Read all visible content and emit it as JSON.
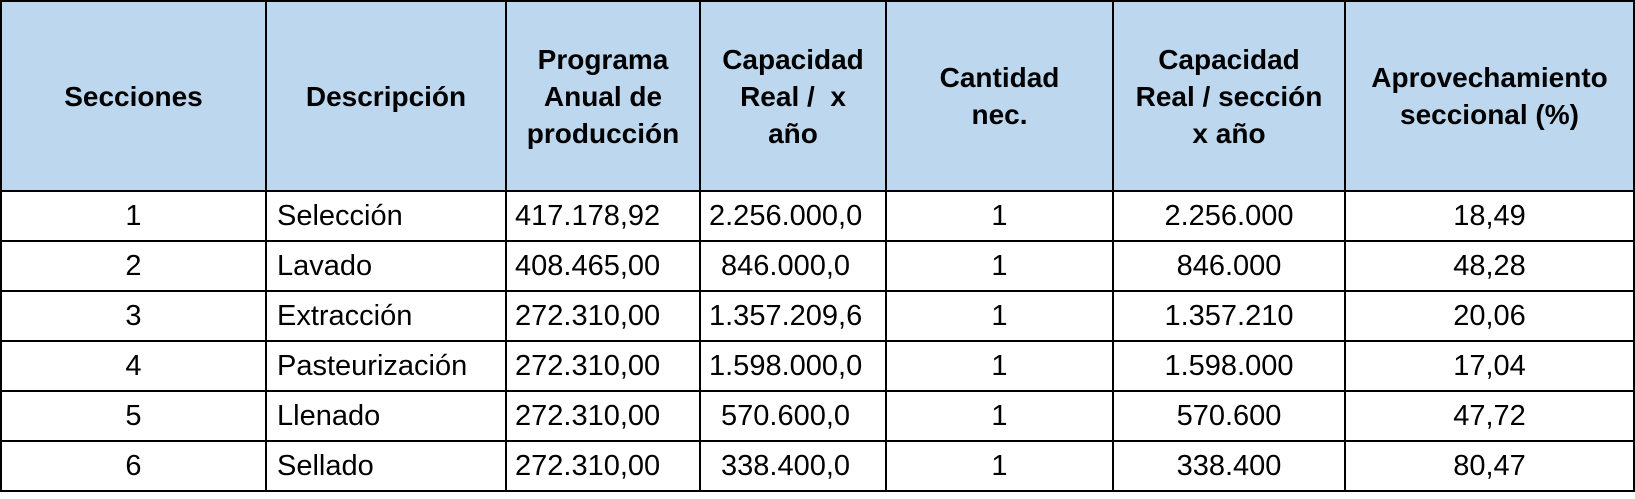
{
  "table": {
    "headers": [
      [
        "Secciones"
      ],
      [
        "Descripción"
      ],
      [
        "Programa",
        "Anual de",
        "producción"
      ],
      [
        "Capacidad",
        "Real /  x",
        "año"
      ],
      [
        "Cantidad",
        "nec."
      ],
      [
        "Capacidad",
        "Real / sección",
        "x año"
      ],
      [
        "Aprovechamiento",
        "seccional (%)"
      ]
    ],
    "rows": [
      [
        "1",
        "Selección",
        "417.178,92",
        "2.256.000,0",
        "1",
        "2.256.000",
        "18,49"
      ],
      [
        "2",
        "Lavado",
        "408.465,00",
        "846.000,0",
        "1",
        "846.000",
        "48,28"
      ],
      [
        "3",
        "Extracción",
        "272.310,00",
        "1.357.209,6",
        "1",
        "1.357.210",
        "20,06"
      ],
      [
        "4",
        "Pasteurización",
        "272.310,00",
        "1.598.000,0",
        "1",
        "1.598.000",
        "17,04"
      ],
      [
        "5",
        "Llenado",
        "272.310,00",
        "570.600,0",
        "1",
        "570.600",
        "47,72"
      ],
      [
        "6",
        "Sellado",
        "272.310,00",
        "338.400,0",
        "1",
        "338.400",
        "80,47"
      ]
    ]
  },
  "colors": {
    "header_background": "#bdd7ee",
    "border": "#000000"
  }
}
